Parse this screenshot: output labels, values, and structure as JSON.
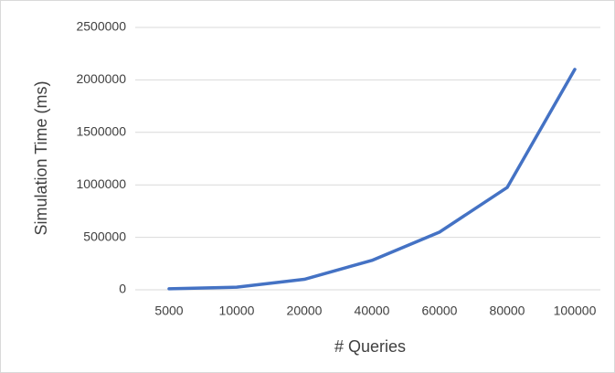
{
  "chart_data": {
    "type": "line",
    "x_label": "# Queries",
    "y_label": "Simulation Time (ms)",
    "categories": [
      "5000",
      "10000",
      "20000",
      "40000",
      "60000",
      "80000",
      "100000"
    ],
    "series": [
      {
        "name": "Simulation Time",
        "color": "#4472c4",
        "values": [
          10000,
          25000,
          100000,
          280000,
          550000,
          975000,
          2100000
        ]
      }
    ],
    "ylim": [
      0,
      2500000
    ],
    "yticks": [
      0,
      500000,
      1000000,
      1500000,
      2000000,
      2500000
    ],
    "grid": true
  }
}
